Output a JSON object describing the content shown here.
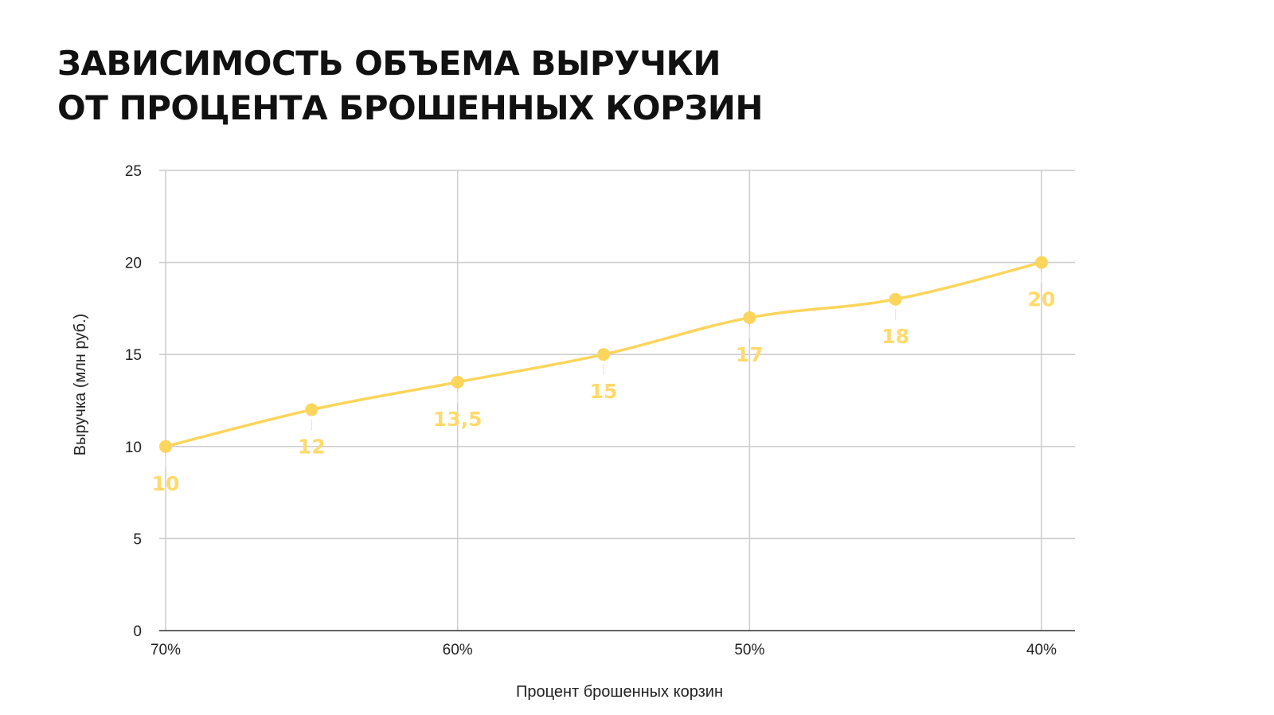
{
  "title": {
    "line1": "ЗАВИСИМОСТЬ ОБЪЕМА ВЫРУЧКИ",
    "line2": "ОТ ПРОЦЕНТА БРОШЕННЫХ КОРЗИН"
  },
  "chart_data": {
    "type": "line",
    "xlabel": "Процент брошенных корзин",
    "ylabel": "Выручка (млн руб.)",
    "x": [
      70,
      65,
      60,
      55,
      50,
      45,
      40
    ],
    "x_tick_labels": [
      "70%",
      "60%",
      "50%",
      "40%"
    ],
    "x_tick_values": [
      70,
      60,
      50,
      40
    ],
    "x_reversed": true,
    "xlim": [
      70,
      40
    ],
    "ylim": [
      0,
      25
    ],
    "y_ticks": [
      0,
      5,
      10,
      15,
      20,
      25
    ],
    "series": [
      {
        "values": [
          10,
          12,
          13.5,
          15,
          17,
          18,
          20
        ],
        "data_labels": [
          "10",
          "12",
          "13,5",
          "15",
          "17",
          "18",
          "20"
        ],
        "color": "#fbd55c"
      }
    ],
    "grid": true,
    "legend": "none"
  }
}
